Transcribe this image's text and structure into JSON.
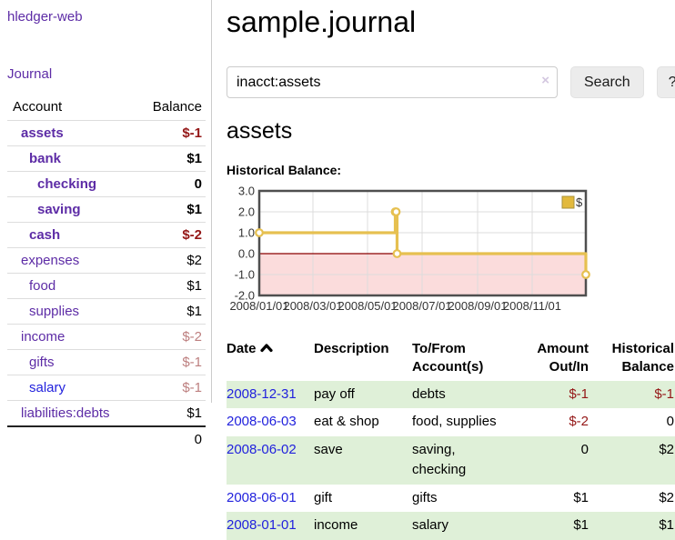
{
  "app_title": "hledger-web",
  "colors": {
    "accent_purple": "#5d2ca6",
    "link_blue": "#2222dd",
    "negative_strong": "#941717",
    "negative_soft": "#bd7f7f",
    "stripe_green": "#dff0d8",
    "series_gold": "#e6c050",
    "negative_region_pink": "#fbdcdc",
    "zero_line_red": "#8b0000"
  },
  "sidebar": {
    "journal_link": "Journal",
    "account_header": "Account",
    "balance_header": "Balance",
    "rows": [
      {
        "account": "assets",
        "balance": "$-1",
        "level": 1,
        "bold": true,
        "neg": "strong",
        "link": "purple"
      },
      {
        "account": "bank",
        "balance": "$1",
        "level": 2,
        "bold": true,
        "neg": "none",
        "link": "purple"
      },
      {
        "account": "checking",
        "balance": "0",
        "level": 3,
        "bold": true,
        "neg": "none",
        "link": "purple"
      },
      {
        "account": "saving",
        "balance": "$1",
        "level": 3,
        "bold": true,
        "neg": "none",
        "link": "purple"
      },
      {
        "account": "cash",
        "balance": "$-2",
        "level": 2,
        "bold": true,
        "neg": "strong",
        "link": "purple"
      },
      {
        "account": "expenses",
        "balance": "$2",
        "level": 1,
        "bold": false,
        "neg": "none",
        "link": "purple"
      },
      {
        "account": "food",
        "balance": "$1",
        "level": 2,
        "bold": false,
        "neg": "none",
        "link": "purple"
      },
      {
        "account": "supplies",
        "balance": "$1",
        "level": 2,
        "bold": false,
        "neg": "none",
        "link": "purple"
      },
      {
        "account": "income",
        "balance": "$-2",
        "level": 1,
        "bold": false,
        "neg": "soft",
        "link": "purple"
      },
      {
        "account": "gifts",
        "balance": "$-1",
        "level": 2,
        "bold": false,
        "neg": "soft",
        "link": "purple"
      },
      {
        "account": "salary",
        "balance": "$-1",
        "level": 2,
        "bold": false,
        "neg": "soft",
        "link": "blue"
      },
      {
        "account": "liabilities:debts",
        "balance": "$1",
        "level": 1,
        "bold": false,
        "neg": "none",
        "link": "purple"
      }
    ],
    "total": "0"
  },
  "main": {
    "title": "sample.journal",
    "search": {
      "value": "inacct:assets",
      "clear_icon": "×",
      "button_label": "Search",
      "help_label": "?"
    },
    "account_heading": "assets",
    "chart_title": "Historical Balance:",
    "register": {
      "headers": {
        "date": "Date",
        "description": "Description",
        "accounts": "To/From Account(s)",
        "amount": "Amount Out/In",
        "balance": "Historical Balance"
      },
      "rows": [
        {
          "date": "2008-12-31",
          "description": "pay off",
          "accounts": "debts",
          "amount": "$-1",
          "balance": "$-1",
          "amount_neg": true,
          "balance_neg": true,
          "stripe": true
        },
        {
          "date": "2008-06-03",
          "description": "eat & shop",
          "accounts": "food, supplies",
          "amount": "$-2",
          "balance": "0",
          "amount_neg": true,
          "balance_neg": false,
          "stripe": false
        },
        {
          "date": "2008-06-02",
          "description": "save",
          "accounts": "saving, checking",
          "amount": "0",
          "balance": "$2",
          "amount_neg": false,
          "balance_neg": false,
          "stripe": true
        },
        {
          "date": "2008-06-01",
          "description": "gift",
          "accounts": "gifts",
          "amount": "$1",
          "balance": "$2",
          "amount_neg": false,
          "balance_neg": false,
          "stripe": false
        },
        {
          "date": "2008-01-01",
          "description": "income",
          "accounts": "salary",
          "amount": "$1",
          "balance": "$1",
          "amount_neg": false,
          "balance_neg": false,
          "stripe": true
        }
      ]
    }
  },
  "chart_data": {
    "type": "line",
    "step": true,
    "title": "",
    "xlabel": "",
    "ylabel": "",
    "series": [
      {
        "name": "$",
        "x": [
          "2008-01-01",
          "2008-06-01",
          "2008-06-02",
          "2008-06-03",
          "2008-12-31"
        ],
        "x_days": [
          0,
          152,
          153,
          154,
          365
        ],
        "values": [
          1,
          2,
          2,
          0,
          -1
        ],
        "color": "#e6c050",
        "marker": "circle-open"
      }
    ],
    "x_tick_labels": [
      "2008/01/01",
      "2008/03/01",
      "2008/05/01",
      "2008/07/01",
      "2008/09/01",
      "2008/11/01"
    ],
    "x_tick_days": [
      0,
      60,
      121,
      182,
      244,
      305
    ],
    "x_range_days": [
      0,
      365
    ],
    "y_ticks": [
      "3.0",
      "2.0",
      "1.0",
      "0.0",
      "-1.0",
      "-2.0"
    ],
    "y_tick_values": [
      3,
      2,
      1,
      0,
      -1,
      -2
    ],
    "ylim": [
      -2,
      3
    ],
    "grid": true,
    "legend": {
      "label": "$",
      "position": "top-right"
    },
    "negative_region_fill": "#fbdcdc",
    "zero_line_color": "#8b0000"
  }
}
